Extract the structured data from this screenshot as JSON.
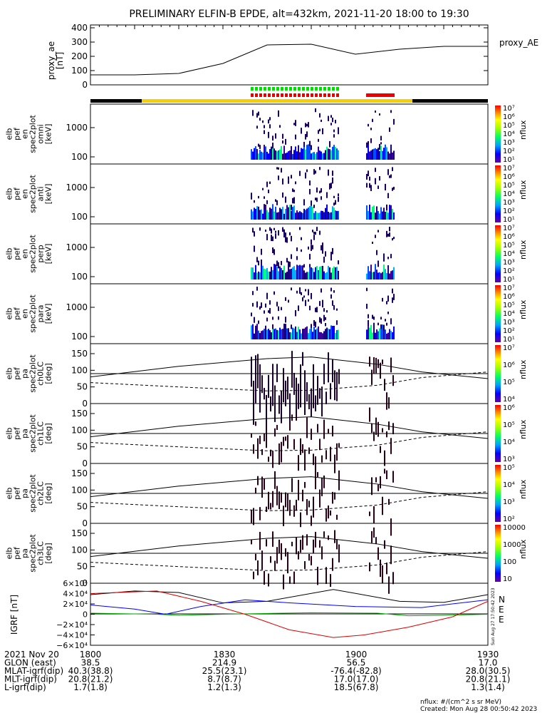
{
  "title": "PRELIMINARY ELFIN-B EPDE, alt=432km, 2021-11-20 18:00 to 19:30",
  "colors": {
    "axis": "#000000",
    "mlt_bar_yellow": "#f5d000",
    "mlt_bar_black": "#000000",
    "spin_green": "#00dd00",
    "spin_red": "#ee0000",
    "grf_n": "#000000",
    "grf_e": "#0000ff",
    "grf_up": "#00aa00",
    "grf_total": "#dd0000"
  },
  "proxy_ae": {
    "ylabel": "proxy_ae\n[nT]",
    "legend": "proxy_AE",
    "yticks": [
      "400",
      "300",
      "200",
      "100",
      "0"
    ]
  },
  "spectra": [
    {
      "ylabel": "elb\npef\nen\nspec2plot\nomni\n[keV]",
      "yticks": [
        "1000",
        "100"
      ],
      "cbar_ticks": [
        "10⁷",
        "10⁶",
        "10⁵",
        "10⁴",
        "10³",
        "10²",
        "10¹"
      ],
      "cbar_label": "nflux"
    },
    {
      "ylabel": "elb\npef\nen\nspec2plot\nanti\n[keV]",
      "yticks": [
        "1000",
        "100"
      ],
      "cbar_ticks": [
        "10⁷",
        "10⁶",
        "10⁵",
        "10⁴",
        "10³",
        "10²",
        "10¹"
      ],
      "cbar_label": "nflux"
    },
    {
      "ylabel": "elb\npef\nen\nspec2plot\nperp\n[keV]",
      "yticks": [
        "1000",
        "100"
      ],
      "cbar_ticks": [
        "10⁷",
        "10⁶",
        "10⁵",
        "10⁴",
        "10³",
        "10²",
        "10¹"
      ],
      "cbar_label": "nflux"
    },
    {
      "ylabel": "elb\npef\nen\nspec2plot\npara\n[keV]",
      "yticks": [
        "1000",
        "100"
      ],
      "cbar_ticks": [
        "10⁷",
        "10⁶",
        "10⁵",
        "10⁴",
        "10³",
        "10²",
        "10¹"
      ],
      "cbar_label": "nflux"
    }
  ],
  "pitch": [
    {
      "ylabel": "elb\npef\npa\nspec2plot\nch0LC\n[deg]",
      "yticks": [
        "150",
        "100",
        "50",
        "0"
      ],
      "cbar_ticks": [
        "10⁷",
        "10⁶",
        "10⁵",
        "10⁴"
      ],
      "cbar_label": "nflux"
    },
    {
      "ylabel": "elb\npef\npa\nspec2plot\nch1LC\n[deg]",
      "yticks": [
        "150",
        "100",
        "50",
        "0"
      ],
      "cbar_ticks": [
        "10⁶",
        "10⁵",
        "10⁴",
        "10³"
      ],
      "cbar_label": "nflux"
    },
    {
      "ylabel": "elb\npef\npa\nspec2plot\nch2LC\n[deg]",
      "yticks": [
        "150",
        "100",
        "50",
        "0"
      ],
      "cbar_ticks": [
        "10⁵",
        "10⁴",
        "10³",
        "10²"
      ],
      "cbar_label": "nflux"
    },
    {
      "ylabel": "elb\npef\npa\nspec2plot\nch3LC\n[deg]",
      "yticks": [
        "150",
        "100",
        "50",
        "0"
      ],
      "cbar_ticks": [
        "10000",
        "1000",
        "100",
        "10"
      ],
      "cbar_label": "nflux"
    }
  ],
  "grf": {
    "ylabel": "IGRF\n[nT]",
    "yticks": [
      "6×10⁴",
      "4×10⁴",
      "2×10⁴",
      "0",
      "−2×10⁴",
      "−4×10⁴",
      "−6×10⁴"
    ],
    "legend": [
      "N",
      "E",
      "E"
    ],
    "stamp": "Sun Aug 27 17:50:42 2023"
  },
  "footer": {
    "rows": [
      {
        "label": "2021 Nov 20",
        "values": [
          "1800",
          "1830",
          "1900",
          "1930"
        ]
      },
      {
        "label": "GLON (east)",
        "values": [
          "38.5",
          "214.9",
          "56.5",
          "17.0"
        ]
      },
      {
        "label": "MLAT-igrf(dip)",
        "values": [
          "40.3(38.8)",
          "25.5(23.1)",
          "-76.4(-82.8)",
          "28.0(30.5)"
        ]
      },
      {
        "label": "MLT-igrf(dip)",
        "values": [
          "20.8(21.2)",
          "8.7(8.7)",
          "17.0(17.0)",
          "20.8(21.1)"
        ]
      },
      {
        "label": "L-igrf(dip)",
        "values": [
          "1.7(1.8)",
          "1.2(1.3)",
          "18.5(67.8)",
          "1.3(1.4)"
        ]
      }
    ],
    "units_note": "nflux: #/(cm^2 s sr MeV)",
    "created": "Created: Mon Aug 28 00:50:42 2023"
  },
  "chart_data": {
    "type": "line",
    "title": "PRELIMINARY ELFIN-B EPDE, alt=432km, 2021-11-20 18:00 to 19:30",
    "x_unit": "UT (HHMM)",
    "x": [
      "1800",
      "1810",
      "1820",
      "1830",
      "1840",
      "1850",
      "1900",
      "1910",
      "1920",
      "1930"
    ],
    "series": [
      {
        "name": "proxy_AE",
        "values": [
          70,
          70,
          80,
          150,
          280,
          285,
          215,
          250,
          270,
          270
        ]
      }
    ],
    "ylim": [
      0,
      420
    ]
  }
}
